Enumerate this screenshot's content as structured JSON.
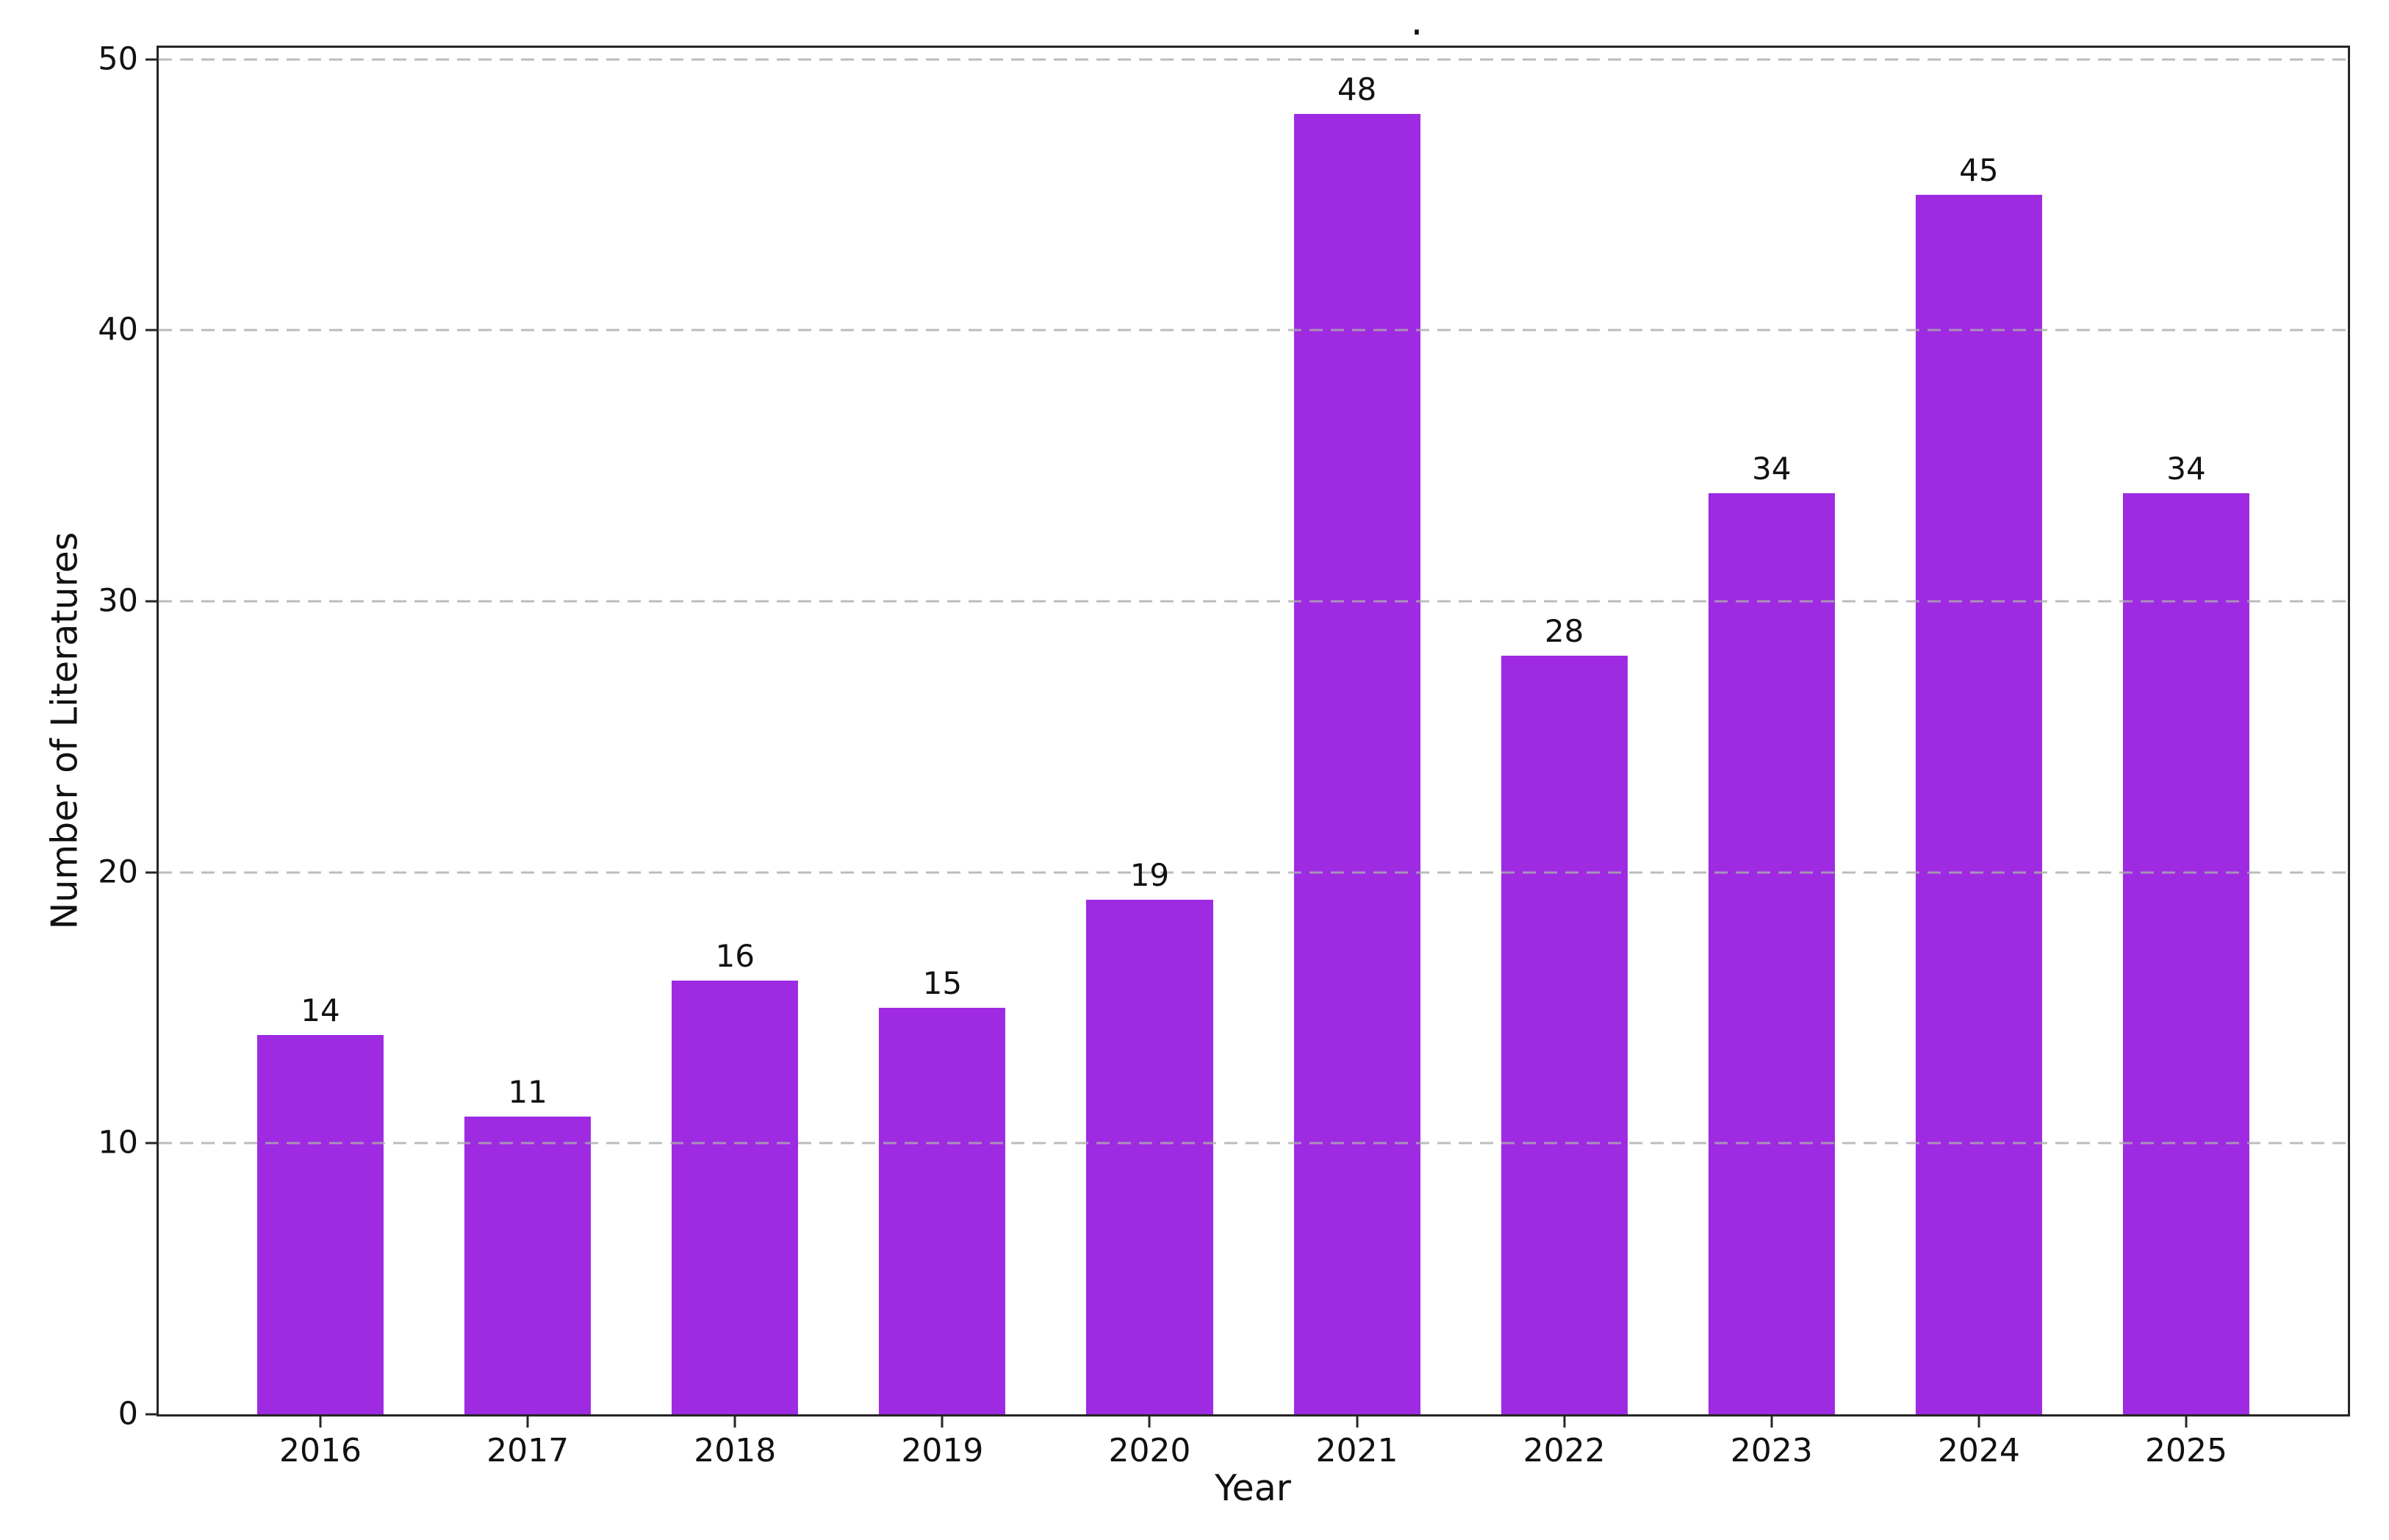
{
  "chart_data": {
    "type": "bar",
    "title": ".",
    "xlabel": "Year",
    "ylabel": "Number of Literatures",
    "categories": [
      "2016",
      "2017",
      "2018",
      "2019",
      "2020",
      "2021",
      "2022",
      "2023",
      "2024",
      "2025"
    ],
    "values": [
      14,
      11,
      16,
      15,
      19,
      48,
      28,
      34,
      45,
      34
    ],
    "bar_value_labels": [
      "14",
      "11",
      "16",
      "15",
      "19",
      "48",
      "28",
      "34",
      "45",
      "34"
    ],
    "yticks": [
      0,
      10,
      20,
      30,
      40,
      50
    ],
    "ylim": [
      0,
      50.43
    ],
    "x_edge_pad_units": 0.78,
    "bar_width_units": 0.61,
    "bar_color": "#9E2AE2",
    "grid": "horizontal-dashed",
    "grid_color": "#acacac",
    "axis_color": "#262626",
    "text_color": "#111111",
    "background_color": "#ffffff",
    "legend": "none"
  }
}
